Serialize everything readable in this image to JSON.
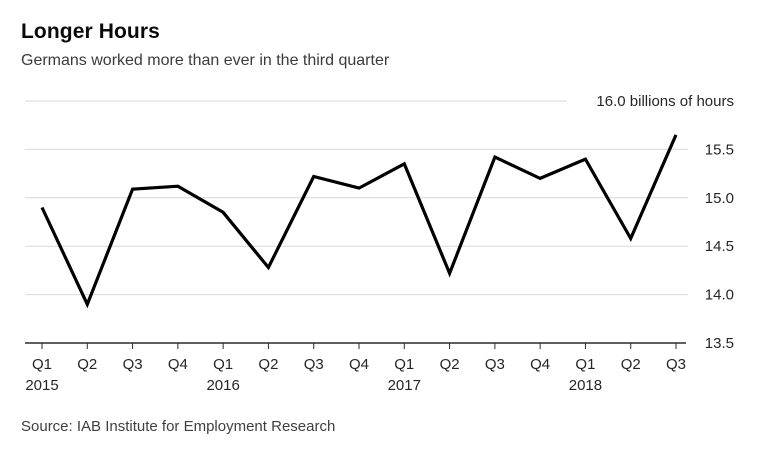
{
  "chart_data": {
    "type": "line",
    "title": "Longer Hours",
    "subtitle": "Germans worked more than ever in the third quarter",
    "source": "Source: IAB Institute for Employment Research",
    "unit_label": "16.0 billions of hours",
    "x": [
      "Q1 2015",
      "Q2 2015",
      "Q3 2015",
      "Q4 2015",
      "Q1 2016",
      "Q2 2016",
      "Q3 2016",
      "Q4 2016",
      "Q1 2017",
      "Q2 2017",
      "Q3 2017",
      "Q4 2017",
      "Q1 2018",
      "Q2 2018",
      "Q3 2018"
    ],
    "values": [
      14.9,
      13.9,
      15.09,
      15.12,
      14.85,
      14.28,
      15.22,
      15.1,
      15.35,
      14.22,
      15.42,
      15.2,
      15.4,
      14.58,
      15.65
    ],
    "ylabel": "billions of hours",
    "ylim": [
      13.5,
      16.0
    ],
    "yticks": [
      16.0,
      15.5,
      15.0,
      14.5,
      14.0,
      13.5
    ],
    "grid": "horizontal",
    "legend": "none",
    "colors": {
      "line": "#000000",
      "gridline": "#d8d8d8",
      "axis": "#2b2b2b",
      "tick_text": "#262626",
      "title_text": "#0a0a0a",
      "subtitle_text": "#3b3b3b",
      "source_text": "#3f3f3f"
    }
  }
}
